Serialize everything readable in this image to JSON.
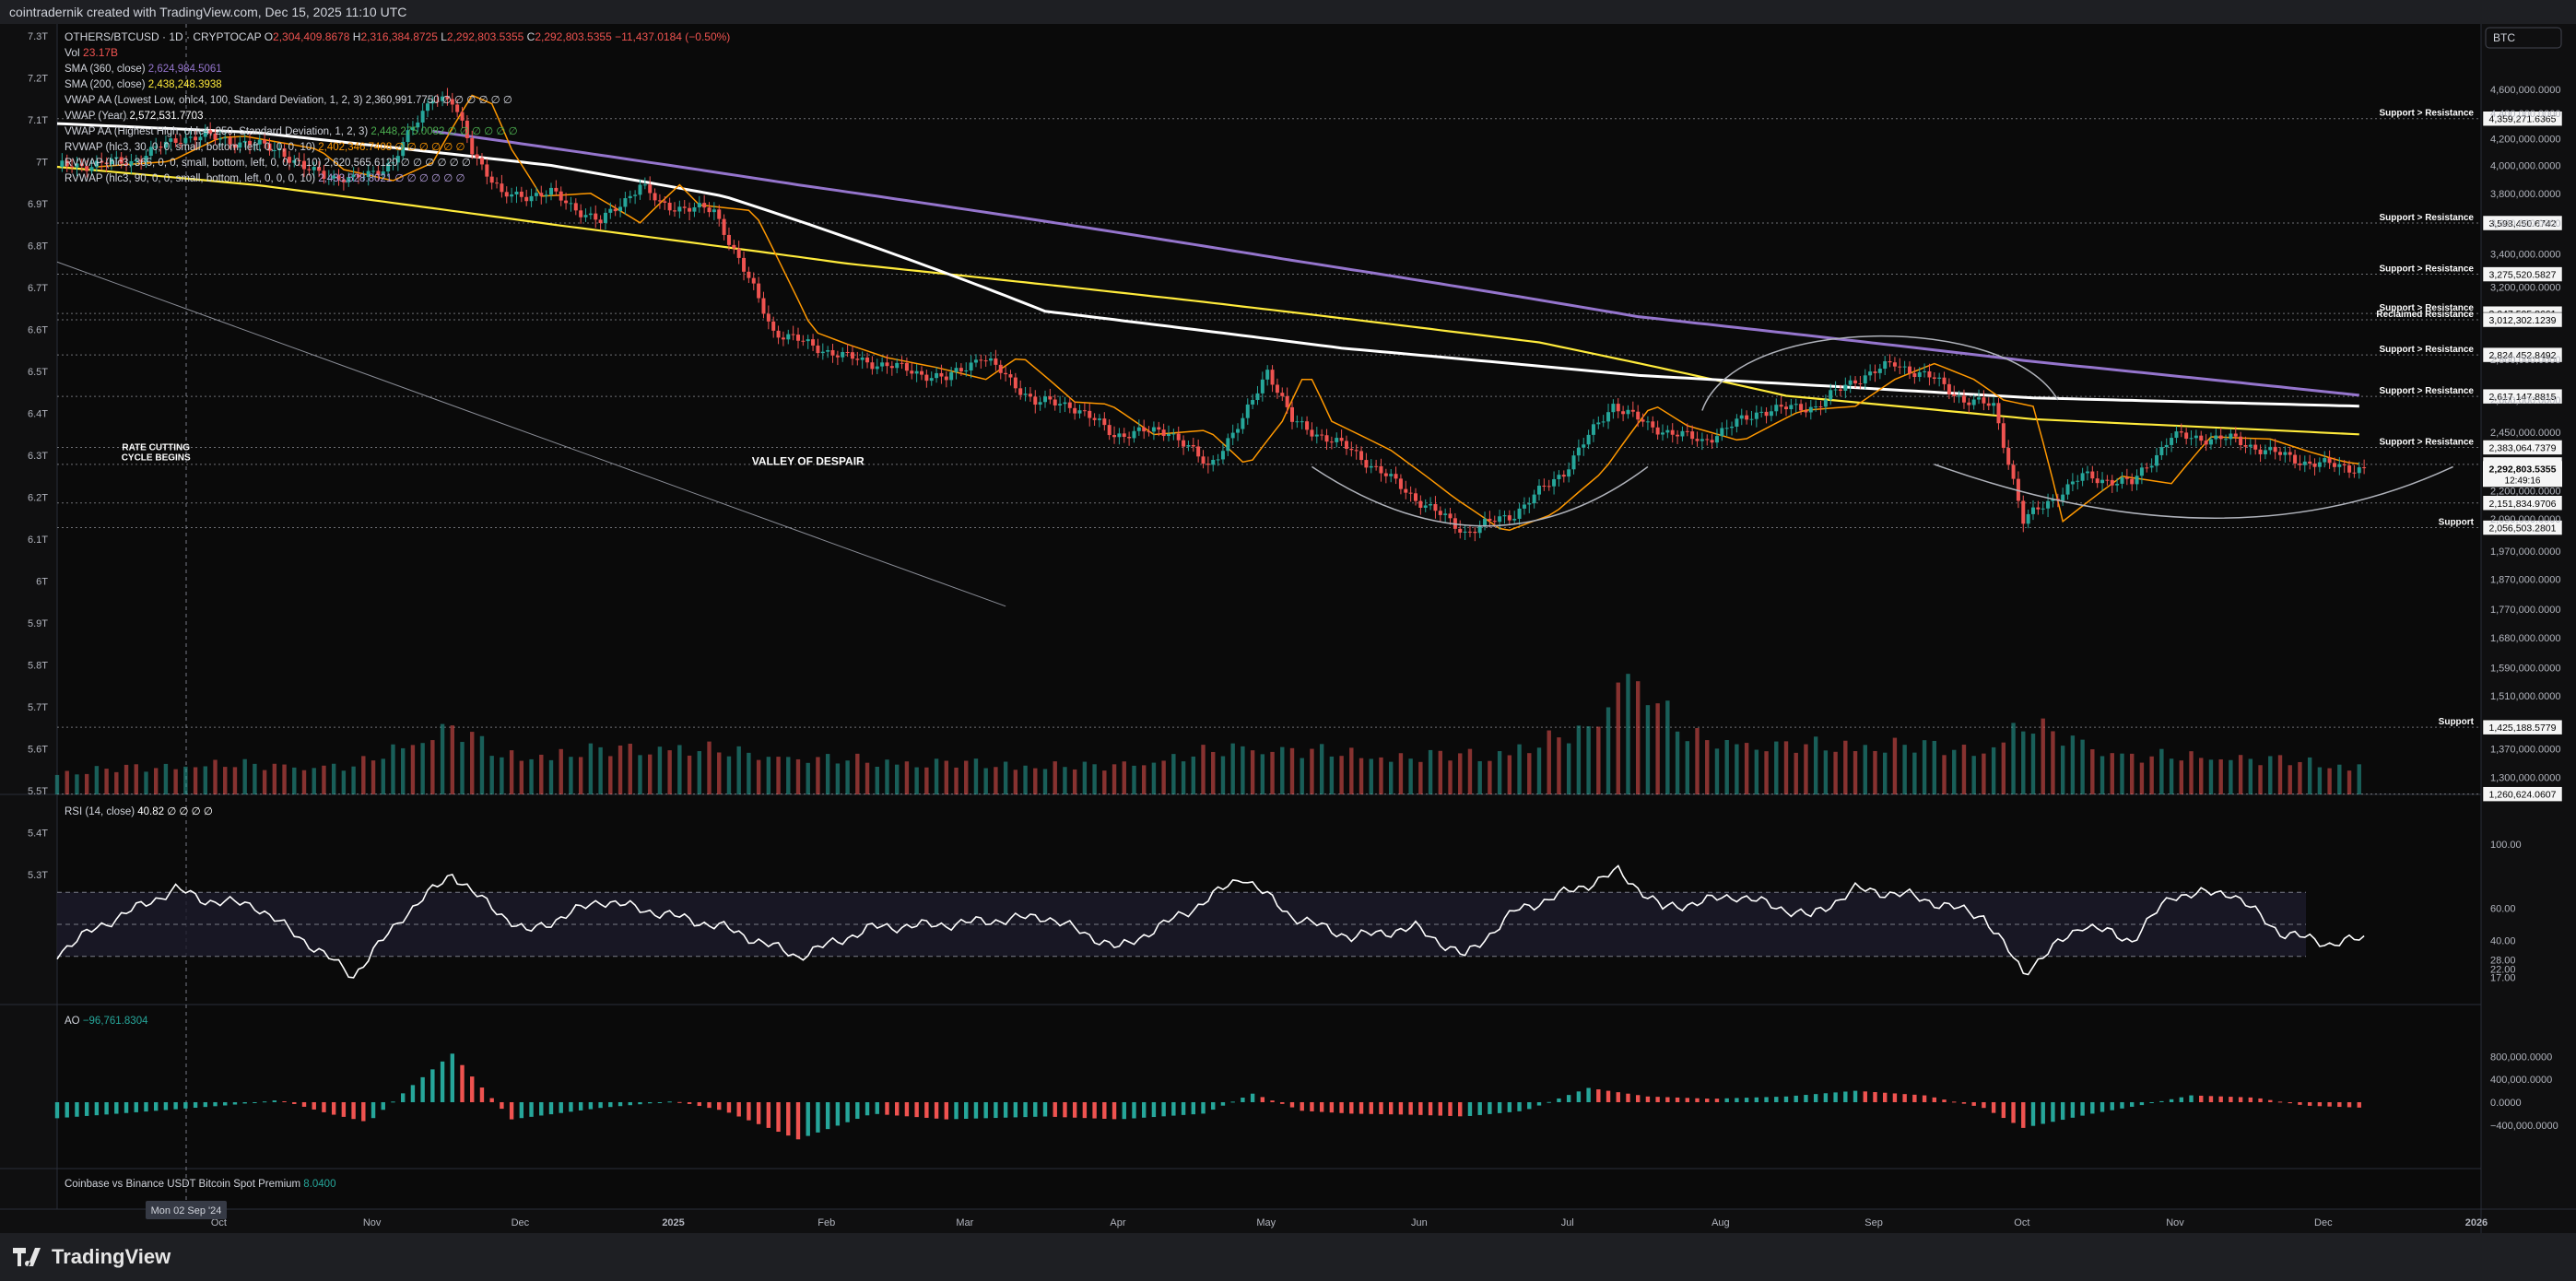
{
  "header": {
    "title": "cointradernik created with TradingView.com, Dec 15, 2025 11:10 UTC"
  },
  "footer": {
    "brand": "TradingView"
  },
  "legend": {
    "symbol": "OTHERS/BTCUSD · 1D · CRYPTOCAP",
    "ohlc": [
      {
        "k": "O",
        "v": "2,304,409.8678"
      },
      {
        "k": "H",
        "v": "2,316,384.8725"
      },
      {
        "k": "L",
        "v": "2,292,803.5355"
      },
      {
        "k": "C",
        "v": "2,292,803.5355 −11,437.0184 (−0.50%)"
      }
    ],
    "vol": {
      "k": "Vol",
      "v": "23.17B"
    },
    "indicators": [
      {
        "name": "SMA (360, close)",
        "value": "2,624,984.5061",
        "color": "#9575cd"
      },
      {
        "name": "SMA (200, close)",
        "value": "2,438,248.3938",
        "color": "#ffeb3b"
      },
      {
        "name": "VWAP AA (Lowest Low, ohlc4, 100, Standard Deviation, 1, 2, 3)",
        "value": "2,360,991.7750 ∅ ∅ ∅ ∅ ∅ ∅",
        "color": "#d1d4dc"
      },
      {
        "name": "VWAP (Year)",
        "value": "2,572,531.7703",
        "color": "#ffffff"
      },
      {
        "name": "VWAP AA (Highest High, ohlc4, 250, Standard Deviation, 1, 2, 3)",
        "value": "2,448,275.0082 ∅ ∅ ∅ ∅ ∅ ∅",
        "color": "#4caf50"
      },
      {
        "name": "RVWAP (hlc3, 30, 0, 0, small, bottom, left, 0, 0, 0, 10)",
        "value": "2,402,346.7408 ∅ ∅ ∅ ∅ ∅ ∅",
        "color": "#ff9800"
      },
      {
        "name": "RVWAP (hlc3, 365, 0, 0, small, bottom, left, 0, 0, 0, 10)",
        "value": "2,620,565.6120 ∅ ∅ ∅ ∅ ∅ ∅",
        "color": "#d1d4dc"
      },
      {
        "name": "RVWAP (hlc3, 90, 0, 0, small, bottom, left, 0, 0, 0, 10)",
        "value": "2,433,528.8021 ∅ ∅ ∅ ∅ ∅ ∅",
        "color": "#b39ddb"
      }
    ],
    "rsi": {
      "name": "RSI (14, close)",
      "value": "40.82 ∅ ∅ ∅ ∅"
    },
    "ao": {
      "name": "AO",
      "value": "−96,761.8304"
    },
    "premium": {
      "name": "Coinbase vs Binance USDT Bitcoin Spot Premium",
      "value": "8.0400"
    }
  },
  "chart_data": {
    "type": "candlestick",
    "symbol_badge": "BTC",
    "timeframe": "1D",
    "x_axis": {
      "labels": [
        "Oct",
        "Nov",
        "Dec",
        "2025",
        "Feb",
        "Mar",
        "Apr",
        "May",
        "Jun",
        "Jul",
        "Aug",
        "Sep",
        "Oct",
        "Nov",
        "Dec",
        "2026"
      ],
      "label_days": [
        29,
        60,
        90,
        121,
        152,
        180,
        211,
        241,
        272,
        302,
        333,
        364,
        394,
        425,
        455,
        486
      ],
      "cursor_label": "Mon 02 Sep '24",
      "cursor_day": 0
    },
    "left_axis": {
      "labels": [
        "7.3T",
        "7.2T",
        "7.1T",
        "7T",
        "6.9T",
        "6.8T",
        "6.7T",
        "6.6T",
        "6.5T",
        "6.4T",
        "6.3T",
        "6.2T",
        "6.1T",
        "6T",
        "5.9T",
        "5.8T",
        "5.7T",
        "5.6T",
        "5.5T",
        "5.4T",
        "5.3T"
      ],
      "values": [
        7.3,
        7.2,
        7.1,
        7.0,
        6.9,
        6.8,
        6.7,
        6.6,
        6.5,
        6.4,
        6.3,
        6.2,
        6.1,
        6.0,
        5.9,
        5.8,
        5.7,
        5.6,
        5.5,
        5.4,
        5.3
      ]
    },
    "price_axis": {
      "labels": [
        "4,600,000.0000",
        "4,400,000.0000",
        "4,200,000.0000",
        "4,000,000.0000",
        "3,800,000.0000",
        "3,600,000.0000",
        "3,400,000.0000",
        "3,200,000.0000",
        "2,800,000.0000",
        "2,600,000.0000",
        "2,450,000.0000",
        "2,200,000.0000",
        "2,090,000.0000",
        "1,970,000.0000",
        "1,870,000.0000",
        "1,770,000.0000",
        "1,680,000.0000",
        "1,590,000.0000",
        "1,510,000.0000",
        "1,370,000.0000",
        "1,300,000.0000"
      ],
      "values": [
        4600000,
        4400000,
        4200000,
        4000000,
        3800000,
        3600000,
        3400000,
        3200000,
        2800000,
        2600000,
        2450000,
        2200000,
        2090000,
        1970000,
        1870000,
        1770000,
        1680000,
        1590000,
        1510000,
        1370000,
        1300000
      ]
    },
    "levels": [
      {
        "label": "Support > Resistance",
        "price": "4,359,271.6365",
        "value": 4359271.6365
      },
      {
        "label": "Support > Resistance",
        "price": "3,598,450.6742",
        "value": 3598450.6742
      },
      {
        "label": "Support > Resistance",
        "price": "3,275,520.5827",
        "value": 3275520.5827
      },
      {
        "label": "Support > Resistance",
        "price": "3,047,505.8661",
        "value": 3047505.8661
      },
      {
        "label": "Reclaimed Resistance",
        "price": "3,012,302.1239",
        "value": 3012302.1239
      },
      {
        "label": "Support > Resistance",
        "price": "2,824,452.8492",
        "value": 2824452.8492
      },
      {
        "label": "Support > Resistance",
        "price": "2,617,147.8815",
        "value": 2617147.8815
      },
      {
        "label": "Support > Resistance",
        "price": "2,383,064.7379",
        "value": 2383064.7379
      },
      {
        "label": "",
        "price": "2,309,751.2572",
        "value": 2309751.2572
      },
      {
        "label": "",
        "price": "2,151,834.9706",
        "value": 2151834.9706
      },
      {
        "label": "Support",
        "price": "2,056,503.2801",
        "value": 2056503.2801
      },
      {
        "label": "Support",
        "price": "1,425,188.5779",
        "value": 1425188.5779
      },
      {
        "label": "",
        "price": "1,260,624.0607",
        "value": 1260624.0607
      }
    ],
    "last_price": {
      "price": "2,292,803.5355",
      "countdown": "12:49:16",
      "value": 2292803.5355
    },
    "annotations": [
      {
        "text": [
          "RATE CUTTING",
          "CYCLE BEGINS"
        ],
        "day": 20
      },
      {
        "text": [
          "VALLEY OF DESPAIR"
        ],
        "day": 152
      }
    ],
    "close_anchors": [
      [
        0,
        3990000.0
      ],
      [
        15,
        4030000.0
      ],
      [
        25,
        4210000.0
      ],
      [
        30,
        4220000.0
      ],
      [
        45,
        4120000.0
      ],
      [
        50,
        3970000.0
      ],
      [
        60,
        3890000.0
      ],
      [
        68,
        4020000.0
      ],
      [
        76,
        4550000.0
      ],
      [
        80,
        4480000.0
      ],
      [
        84,
        4120000.0
      ],
      [
        90,
        3780000.0
      ],
      [
        100,
        3800000.0
      ],
      [
        110,
        3600000.0
      ],
      [
        118,
        3860000.0
      ],
      [
        122,
        3720000.0
      ],
      [
        133,
        3680000.0
      ],
      [
        139,
        3300000.0
      ],
      [
        145,
        2950000.0
      ],
      [
        152,
        2880000.0
      ],
      [
        160,
        2810000.0
      ],
      [
        170,
        2760000.0
      ],
      [
        180,
        2700000.0
      ],
      [
        187,
        2820000.0
      ],
      [
        198,
        2590000.0
      ],
      [
        205,
        2580000.0
      ],
      [
        214,
        2440000.0
      ],
      [
        225,
        2460000.0
      ],
      [
        233,
        2300000.0
      ],
      [
        240,
        2500000.0
      ],
      [
        245,
        2750000.0
      ],
      [
        250,
        2500000.0
      ],
      [
        262,
        2370000.0
      ],
      [
        275,
        2170000.0
      ],
      [
        285,
        2040000.0
      ],
      [
        295,
        2110000.0
      ],
      [
        305,
        2280000.0
      ],
      [
        315,
        2580000.0
      ],
      [
        322,
        2480000.0
      ],
      [
        333,
        2410000.0
      ],
      [
        345,
        2550000.0
      ],
      [
        356,
        2570000.0
      ],
      [
        364,
        2700000.0
      ],
      [
        372,
        2780000.0
      ],
      [
        380,
        2700000.0
      ],
      [
        386,
        2600000.0
      ],
      [
        392,
        2570000.0
      ],
      [
        398,
        2080000.0
      ],
      [
        410,
        2260000.0
      ],
      [
        420,
        2230000.0
      ],
      [
        428,
        2430000.0
      ],
      [
        440,
        2420000.0
      ],
      [
        447,
        2370000.0
      ],
      [
        455,
        2320000.0
      ],
      [
        467,
        2290000.0
      ]
    ],
    "sma360_anchors": [
      [
        76,
        4260000.0
      ],
      [
        150,
        3860000.0
      ],
      [
        250,
        3360000.0
      ],
      [
        320,
        3030000.0
      ],
      [
        400,
        2790000.0
      ],
      [
        467,
        2620000.0
      ]
    ],
    "sma200_anchors": [
      [
        0,
        3990000.0
      ],
      [
        40,
        3860000.0
      ],
      [
        100,
        3590000.0
      ],
      [
        160,
        3340000.0
      ],
      [
        230,
        3120000.0
      ],
      [
        300,
        2890000.0
      ],
      [
        350,
        2620000.0
      ],
      [
        400,
        2510000.0
      ],
      [
        467,
        2440000.0
      ]
    ],
    "vwap_year_anchors": [
      [
        0,
        4320000.0
      ],
      [
        40,
        4250000.0
      ],
      [
        100,
        4000000.0
      ],
      [
        135,
        3780000.0
      ],
      [
        200,
        3060000.0
      ],
      [
        260,
        2860000.0
      ],
      [
        320,
        2720000.0
      ],
      [
        400,
        2610000.0
      ],
      [
        467,
        2570000.0
      ]
    ],
    "rsi": {
      "levels": [
        70,
        50,
        30
      ],
      "axis_labels": [
        "100.00",
        "60.00",
        "40.00",
        "28.00",
        "22.00",
        "17.00"
      ],
      "axis_values": [
        100,
        60,
        40,
        28,
        22,
        17
      ],
      "last": 40.82,
      "anchors": [
        [
          0,
          32
        ],
        [
          8,
          48
        ],
        [
          16,
          60
        ],
        [
          24,
          72
        ],
        [
          30,
          65
        ],
        [
          40,
          62
        ],
        [
          50,
          40
        ],
        [
          60,
          18
        ],
        [
          70,
          55
        ],
        [
          80,
          82
        ],
        [
          84,
          70
        ],
        [
          95,
          45
        ],
        [
          110,
          65
        ],
        [
          125,
          55
        ],
        [
          135,
          48
        ],
        [
          150,
          30
        ],
        [
          165,
          48
        ],
        [
          180,
          50
        ],
        [
          200,
          55
        ],
        [
          215,
          35
        ],
        [
          230,
          60
        ],
        [
          240,
          80
        ],
        [
          250,
          55
        ],
        [
          262,
          42
        ],
        [
          275,
          48
        ],
        [
          285,
          30
        ],
        [
          295,
          58
        ],
        [
          310,
          75
        ],
        [
          316,
          83
        ],
        [
          325,
          60
        ],
        [
          340,
          68
        ],
        [
          355,
          55
        ],
        [
          364,
          72
        ],
        [
          375,
          68
        ],
        [
          390,
          55
        ],
        [
          398,
          20
        ],
        [
          410,
          50
        ],
        [
          420,
          40
        ],
        [
          428,
          68
        ],
        [
          440,
          70
        ],
        [
          450,
          45
        ],
        [
          460,
          38
        ],
        [
          467,
          41
        ]
      ]
    },
    "ao": {
      "axis_labels": [
        "800,000.0000",
        "400,000.0000",
        "0.0000",
        "−400,000.0000"
      ],
      "axis_values": [
        800000,
        400000,
        0,
        -400000
      ],
      "last": -96761.8304,
      "anchors": [
        [
          0,
          -280000
        ],
        [
          20,
          -150000
        ],
        [
          35,
          -50000
        ],
        [
          45,
          40000
        ],
        [
          55,
          -200000
        ],
        [
          63,
          -350000
        ],
        [
          72,
          300000
        ],
        [
          80,
          850000
        ],
        [
          85,
          350000
        ],
        [
          92,
          -300000
        ],
        [
          110,
          -100000
        ],
        [
          125,
          20000
        ],
        [
          135,
          -150000
        ],
        [
          150,
          -650000
        ],
        [
          165,
          -200000
        ],
        [
          180,
          -300000
        ],
        [
          200,
          -250000
        ],
        [
          215,
          -300000
        ],
        [
          232,
          -200000
        ],
        [
          242,
          150000
        ],
        [
          252,
          -150000
        ],
        [
          262,
          -200000
        ],
        [
          275,
          -220000
        ],
        [
          285,
          -250000
        ],
        [
          297,
          -150000
        ],
        [
          310,
          250000
        ],
        [
          322,
          100000
        ],
        [
          335,
          60000
        ],
        [
          350,
          100000
        ],
        [
          364,
          200000
        ],
        [
          378,
          120000
        ],
        [
          390,
          -100000
        ],
        [
          398,
          -450000
        ],
        [
          412,
          -200000
        ],
        [
          422,
          -50000
        ],
        [
          432,
          120000
        ],
        [
          445,
          80000
        ],
        [
          455,
          -60000
        ],
        [
          467,
          -97000
        ]
      ]
    },
    "volume": {
      "anchors": [
        [
          0,
          0.18
        ],
        [
          30,
          0.24
        ],
        [
          60,
          0.22
        ],
        [
          80,
          0.55
        ],
        [
          90,
          0.3
        ],
        [
          110,
          0.35
        ],
        [
          125,
          0.38
        ],
        [
          140,
          0.32
        ],
        [
          155,
          0.28
        ],
        [
          170,
          0.26
        ],
        [
          190,
          0.24
        ],
        [
          210,
          0.22
        ],
        [
          225,
          0.28
        ],
        [
          240,
          0.38
        ],
        [
          270,
          0.3
        ],
        [
          290,
          0.32
        ],
        [
          310,
          0.5
        ],
        [
          318,
          1.0
        ],
        [
          330,
          0.45
        ],
        [
          350,
          0.38
        ],
        [
          370,
          0.4
        ],
        [
          390,
          0.35
        ],
        [
          398,
          0.55
        ],
        [
          420,
          0.3
        ],
        [
          440,
          0.3
        ],
        [
          467,
          0.22
        ]
      ]
    }
  }
}
